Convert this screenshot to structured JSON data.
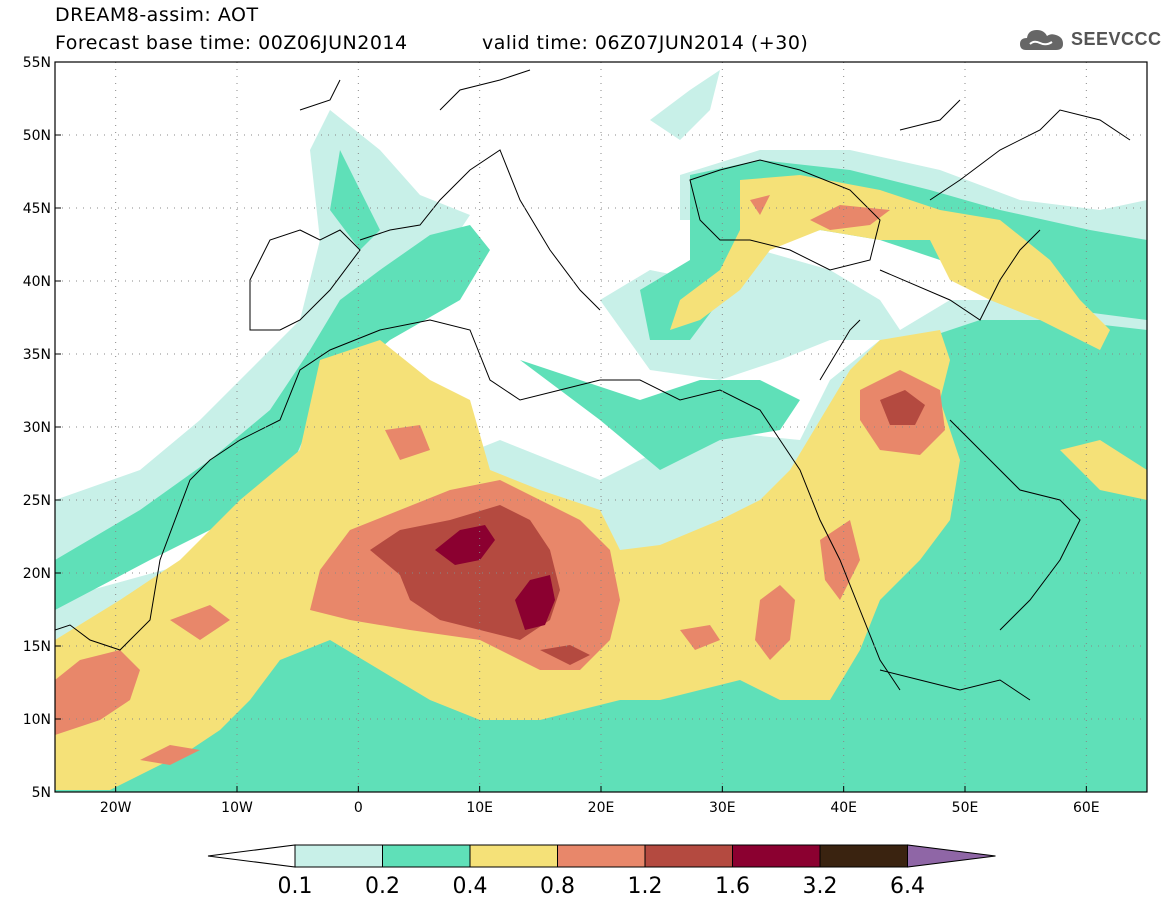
{
  "header": {
    "model_line": "DREAM8-assim: AOT",
    "base_time_line": "Forecast base time: 00Z06JUN2014",
    "valid_time_line": "valid time: 06Z07JUN2014 (+30)",
    "logo_text": "SEEVCCC",
    "logo_icon": "cloud-logo-icon"
  },
  "map": {
    "lon_range": [
      -25,
      65
    ],
    "lat_range": [
      5,
      55
    ],
    "lat_ticks": [
      "5N",
      "10N",
      "15N",
      "20N",
      "25N",
      "30N",
      "35N",
      "40N",
      "45N",
      "50N",
      "55N"
    ],
    "lat_values": [
      5,
      10,
      15,
      20,
      25,
      30,
      35,
      40,
      45,
      50,
      55
    ],
    "lon_ticks": [
      "20W",
      "10W",
      "0",
      "10E",
      "20E",
      "30E",
      "40E",
      "50E",
      "60E"
    ],
    "lon_values": [
      -20,
      -10,
      0,
      10,
      20,
      30,
      40,
      50,
      60
    ],
    "grid": "dotted"
  },
  "colorbar": {
    "levels": [
      "0.1",
      "0.2",
      "0.4",
      "0.8",
      "1.2",
      "1.6",
      "3.2",
      "6.4"
    ],
    "colors": [
      "#c8f0e8",
      "#5fe0b8",
      "#f5e178",
      "#e8876a",
      "#b44a40",
      "#8b0030",
      "#3a2310",
      "#8f66a6"
    ],
    "under_color": "#ffffff"
  },
  "colors": {
    "c1": "#c8f0e8",
    "c2": "#5fe0b8",
    "c3": "#f5e178",
    "c4": "#e8876a",
    "c5": "#b44a40",
    "c6": "#8b0030"
  }
}
